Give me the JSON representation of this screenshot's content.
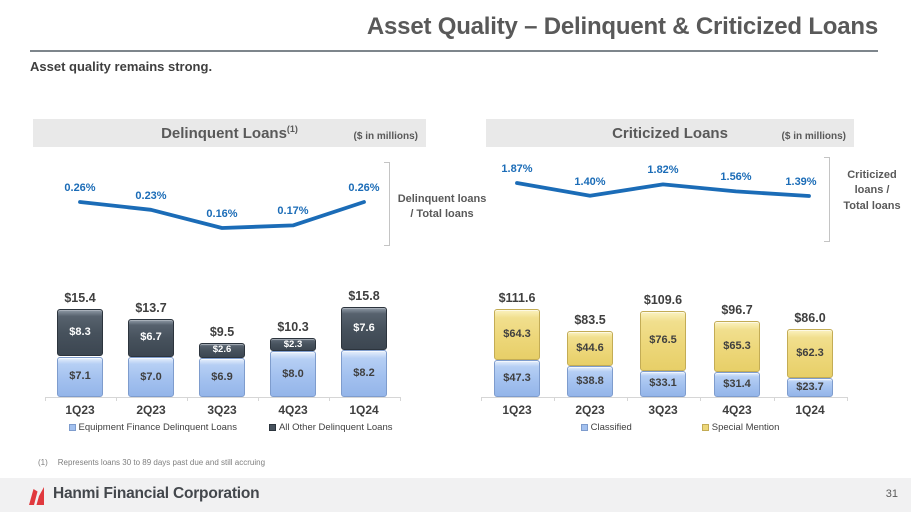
{
  "page": {
    "title": "Asset Quality – Delinquent & Criticized Loans",
    "subtitle": "Asset quality remains strong."
  },
  "panels": {
    "delinquent": {
      "header_label": "Delinquent Loans",
      "header_sup": "(1)",
      "units": "($ in millions)",
      "ratio_label": "Delinquent loans\n/ Total loans"
    },
    "criticized": {
      "header_label": "Criticized Loans",
      "units": "($ in millions)",
      "ratio_label": "Criticized\nloans /\nTotal loans"
    }
  },
  "chart_data": [
    {
      "id": "delinquent-ratio-line",
      "type": "line",
      "title": "Delinquent loans / Total loans",
      "x": [
        "1Q23",
        "2Q23",
        "3Q23",
        "4Q23",
        "1Q24"
      ],
      "values": [
        0.26,
        0.23,
        0.16,
        0.17,
        0.26
      ],
      "labels": [
        "0.26%",
        "0.23%",
        "0.16%",
        "0.17%",
        "0.26%"
      ],
      "unit": "percent",
      "line_color": "#1b6cb7",
      "grid": false,
      "axes_hidden": true
    },
    {
      "id": "delinquent-bars",
      "type": "bar",
      "stacked": true,
      "title": "Delinquent Loans ($ in millions)",
      "categories": [
        "1Q23",
        "2Q23",
        "3Q23",
        "4Q23",
        "1Q24"
      ],
      "series": [
        {
          "name": "Equipment Finance Delinquent Loans",
          "css": "blue",
          "color": "#a3c1ef",
          "label_color": "#3f3f3f",
          "values": [
            7.1,
            7.0,
            6.9,
            8.0,
            8.2
          ],
          "labels": [
            "$7.1",
            "$7.0",
            "$6.9",
            "$8.0",
            "$8.2"
          ]
        },
        {
          "name": "All Other Delinquent Loans",
          "css": "dark",
          "color": "#47525d",
          "label_color": "#ffffff",
          "values": [
            8.3,
            6.7,
            2.6,
            2.3,
            7.6
          ],
          "labels": [
            "$8.3",
            "$6.7",
            "$2.6",
            "$2.3",
            "$7.6"
          ]
        }
      ],
      "totals": [
        15.4,
        13.7,
        9.5,
        10.3,
        15.8
      ],
      "total_labels": [
        "$15.4",
        "$13.7",
        "$9.5",
        "$10.3",
        "$15.8"
      ],
      "legend_position": "bottom"
    },
    {
      "id": "criticized-ratio-line",
      "type": "line",
      "title": "Criticized loans / Total loans",
      "x": [
        "1Q23",
        "2Q23",
        "3Q23",
        "4Q23",
        "1Q24"
      ],
      "values": [
        1.87,
        1.4,
        1.82,
        1.56,
        1.39
      ],
      "labels": [
        "1.87%",
        "1.40%",
        "1.82%",
        "1.56%",
        "1.39%"
      ],
      "unit": "percent",
      "line_color": "#1b6cb7",
      "grid": false,
      "axes_hidden": true
    },
    {
      "id": "criticized-bars",
      "type": "bar",
      "stacked": true,
      "title": "Criticized Loans ($ in millions)",
      "categories": [
        "1Q23",
        "2Q23",
        "3Q23",
        "4Q23",
        "1Q24"
      ],
      "series": [
        {
          "name": "Classified",
          "css": "blue",
          "color": "#a3c1ef",
          "label_color": "#3f3f3f",
          "values": [
            47.3,
            38.8,
            33.1,
            31.4,
            23.7
          ],
          "labels": [
            "$47.3",
            "$38.8",
            "$33.1",
            "$31.4",
            "$23.7"
          ]
        },
        {
          "name": "Special Mention",
          "css": "yellow",
          "color": "#edd77a",
          "label_color": "#3f3f3f",
          "values": [
            64.3,
            44.6,
            76.5,
            65.3,
            62.3
          ],
          "labels": [
            "$64.3",
            "$44.6",
            "$76.5",
            "$65.3",
            "$62.3"
          ]
        }
      ],
      "totals": [
        111.6,
        83.5,
        109.6,
        96.7,
        86.0
      ],
      "total_labels": [
        "$111.6",
        "$83.5",
        "$109.6",
        "$96.7",
        "$86.0"
      ],
      "legend_position": "bottom"
    }
  ],
  "footnote": {
    "marker": "(1)",
    "text": "Represents loans 30 to 89 days past due and still accruing"
  },
  "footer": {
    "company": "Hanmi Financial Corporation",
    "page_number": "31"
  },
  "colors": {
    "accent_blue_line": "#1b6cb7",
    "bar_light_blue": "#a3c1ef",
    "bar_dark_slate": "#47525d",
    "bar_yellow": "#edd77a",
    "logo_red": "#e0393e",
    "header_bar_bg": "#e9e9e9"
  }
}
